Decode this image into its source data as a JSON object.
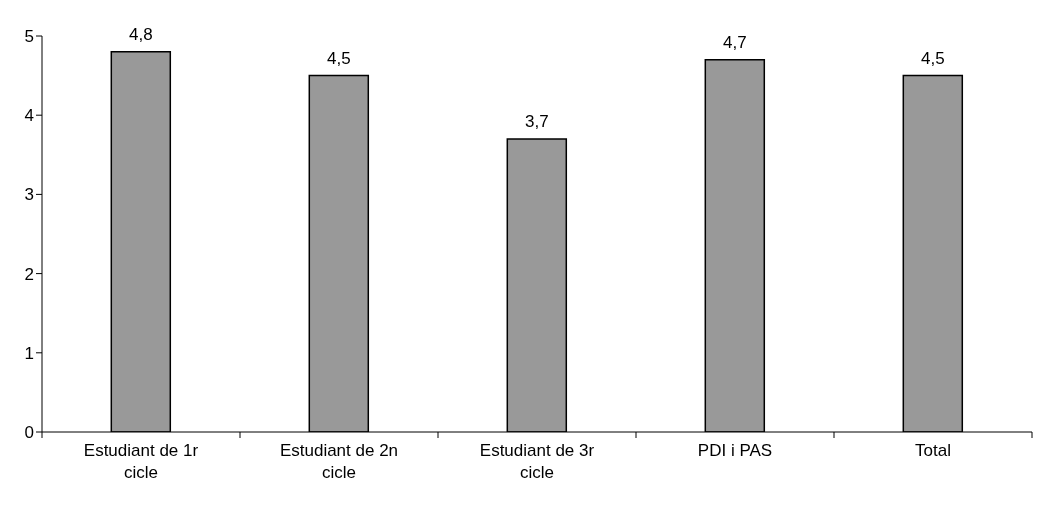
{
  "chart_data": {
    "type": "bar",
    "categories": [
      "Estudiant de 1r cicle",
      "Estudiant de 2n cicle",
      "Estudiant de 3r cicle",
      "PDI i PAS",
      "Total"
    ],
    "values": [
      4.8,
      4.5,
      3.7,
      4.7,
      4.5
    ],
    "value_labels": [
      "4,8",
      "4,5",
      "3,7",
      "4,7",
      "4,5"
    ],
    "color": "#999999",
    "ylim": [
      0,
      5
    ],
    "yticks": [
      0,
      1,
      2,
      3,
      4,
      5
    ],
    "grid": false,
    "legend": false
  }
}
